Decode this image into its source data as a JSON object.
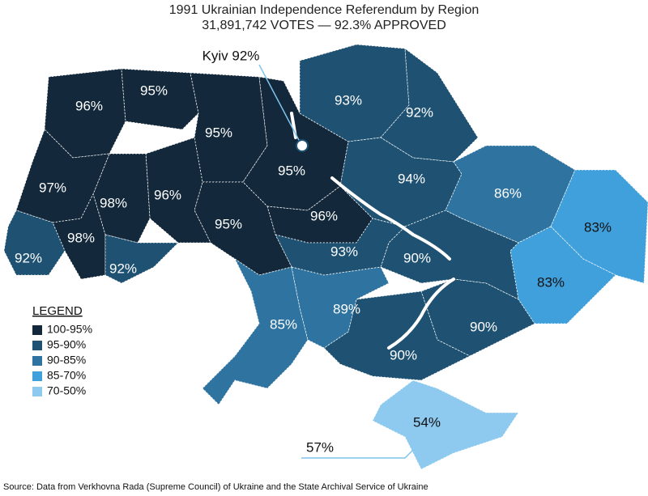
{
  "title": "1991 Ukrainian Independence Referendum by Region",
  "subtitle": "31,891,742 VOTES — 92.3% APPROVED",
  "kyiv_label": "Kyiv 92%",
  "sevastopol_label": "57%",
  "regions": [
    {
      "label": "96%",
      "color": "#13283a"
    },
    {
      "label": "95%",
      "color": "#13283a"
    },
    {
      "label": "95%",
      "color": "#13283a"
    },
    {
      "label": "95%",
      "color": "#13283a"
    },
    {
      "label": "93%",
      "color": "#1f5272"
    },
    {
      "label": "92%",
      "color": "#1f5272"
    },
    {
      "label": "94%",
      "color": "#1f5272"
    },
    {
      "label": "86%",
      "color": "#2f74a0"
    },
    {
      "label": "83%",
      "color": "#3fa0dc"
    },
    {
      "label": "83%",
      "color": "#3fa0dc"
    },
    {
      "label": "90%",
      "color": "#1f5272"
    },
    {
      "label": "90%",
      "color": "#1f5272"
    },
    {
      "label": "90%",
      "color": "#1f5272"
    },
    {
      "label": "96%",
      "color": "#13283a"
    },
    {
      "label": "93%",
      "color": "#1f5272"
    },
    {
      "label": "95%",
      "color": "#13283a"
    },
    {
      "label": "96%",
      "color": "#13283a"
    },
    {
      "label": "98%",
      "color": "#13283a"
    },
    {
      "label": "97%",
      "color": "#13283a"
    },
    {
      "label": "98%",
      "color": "#13283a"
    },
    {
      "label": "92%",
      "color": "#1f5272"
    },
    {
      "label": "92%",
      "color": "#1f5272"
    },
    {
      "label": "85%",
      "color": "#2f74a0"
    },
    {
      "label": "89%",
      "color": "#2f74a0"
    },
    {
      "label": "54%",
      "color": "#8ecaef"
    }
  ],
  "legend": {
    "title": "LEGEND",
    "items": [
      {
        "label": "100-95%",
        "color": "#13283a"
      },
      {
        "label": "95-90%",
        "color": "#1f5272"
      },
      {
        "label": "90-85%",
        "color": "#2f74a0"
      },
      {
        "label": "85-70%",
        "color": "#3fa0dc"
      },
      {
        "label": "70-50%",
        "color": "#8ecaef"
      }
    ]
  },
  "source": "Source: Data from Verkhovna Rada (Supreme Council) of Ukraine and the State Archival Service of Ukraine"
}
